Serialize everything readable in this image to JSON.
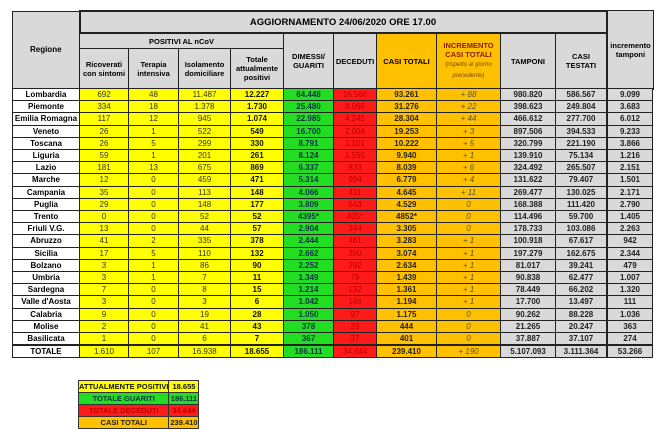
{
  "title": "AGGIORNAMENTO 24/06/2020 ORE 17.00",
  "headers": {
    "regione": "Regione",
    "positivi_group": "POSITIVI AL nCoV",
    "ricoverati": "Ricoverati con sintomi",
    "terapia": "Terapia intensiva",
    "isolamento": "Isolamento domiciliare",
    "totale_positivi": "Totale attualmente positivi",
    "dimessi": "DIMESSI/ GUARITI",
    "deceduti": "DECEDUTI",
    "casi_totali": "CASI TOTALI",
    "incremento": "INCREMENTO CASI TOTALI",
    "incremento_note": "(rispetto al giorno precedente)",
    "tamponi": "TAMPONI",
    "casi_testati": "CASI TESTATI",
    "incremento_tamponi": "incremento tamponi"
  },
  "colors": {
    "positivi": "#ffff00",
    "guariti": "#22dd22",
    "deceduti": "#ff1a1a",
    "casi_totali": "#ffc000",
    "header": "#d9d9d9"
  },
  "rows": [
    [
      "Lombardia",
      "692",
      "48",
      "11.487",
      "12.227",
      "64.448",
      "16.586",
      "93.261",
      "+ 88",
      "980.820",
      "586.567",
      "9.099"
    ],
    [
      "Piemonte",
      "334",
      "18",
      "1.378",
      "1.730",
      "25.480",
      "4.066",
      "31.276",
      "+ 22",
      "398.623",
      "249.804",
      "3.683"
    ],
    [
      "Emilia Romagna",
      "117",
      "12",
      "945",
      "1.074",
      "22.985",
      "4.245",
      "28.304",
      "+ 44",
      "466.612",
      "277.700",
      "6.012"
    ],
    [
      "Veneto",
      "26",
      "1",
      "522",
      "549",
      "16.700",
      "2.004",
      "19.253",
      "+ 3",
      "897.506",
      "394.533",
      "9.233"
    ],
    [
      "Toscana",
      "26",
      "5",
      "299",
      "330",
      "8.791",
      "1.101",
      "10.222",
      "+ 5",
      "320.799",
      "221.190",
      "3.866"
    ],
    [
      "Liguria",
      "59",
      "1",
      "201",
      "261",
      "8.124",
      "1.555",
      "9.940",
      "+ 1",
      "139.910",
      "75.134",
      "1.216"
    ],
    [
      "Lazio",
      "181",
      "13",
      "675",
      "869",
      "6.337",
      "833",
      "8.039",
      "+ 6",
      "324.492",
      "265.507",
      "2.151"
    ],
    [
      "Marche",
      "12",
      "0",
      "459",
      "471",
      "5.314",
      "994",
      "6.779",
      "+ 4",
      "131.622",
      "79.407",
      "1.501"
    ],
    [
      "Campania",
      "35",
      "0",
      "113",
      "148",
      "4.066",
      "431",
      "4.645",
      "+ 11",
      "269.477",
      "130.025",
      "2.171"
    ],
    [
      "Puglia",
      "29",
      "0",
      "148",
      "177",
      "3.809",
      "543",
      "4.529",
      "0",
      "168.388",
      "111.420",
      "2.790"
    ],
    [
      "Trento",
      "0",
      "0",
      "52",
      "52",
      "4395*",
      "405*",
      "4852*",
      "0",
      "114.496",
      "59.700",
      "1.405"
    ],
    [
      "Friuli V.G.",
      "13",
      "0",
      "44",
      "57",
      "2.904",
      "344",
      "3.305",
      "0",
      "178.733",
      "103.086",
      "2.263"
    ],
    [
      "Abruzzo",
      "41",
      "2",
      "335",
      "378",
      "2.444",
      "461",
      "3.283",
      "+ 1",
      "100.918",
      "67.617",
      "942"
    ],
    [
      "Sicilia",
      "17",
      "5",
      "110",
      "132",
      "2.662",
      "280",
      "3.074",
      "+ 1",
      "197.279",
      "162.675",
      "2.344"
    ],
    [
      "Bolzano",
      "3",
      "1",
      "86",
      "90",
      "2.252",
      "292",
      "2.634",
      "+ 1",
      "81.017",
      "39.241",
      "479"
    ],
    [
      "Umbria",
      "3",
      "1",
      "7",
      "11",
      "1.349",
      "79",
      "1.439",
      "+ 1",
      "90.838",
      "62.477",
      "1.007"
    ],
    [
      "Sardegna",
      "7",
      "0",
      "8",
      "15",
      "1.214",
      "132",
      "1.361",
      "+ 1",
      "78.449",
      "66.202",
      "1.320"
    ],
    [
      "Valle d'Aosta",
      "3",
      "0",
      "3",
      "6",
      "1.042",
      "146",
      "1.194",
      "+ 1",
      "17.700",
      "13.497",
      "111"
    ],
    [
      "Calabria",
      "9",
      "0",
      "19",
      "28",
      "1.050",
      "97",
      "1.175",
      "0",
      "90.262",
      "88.228",
      "1.036"
    ],
    [
      "Molise",
      "2",
      "0",
      "41",
      "43",
      "378",
      "23",
      "444",
      "0",
      "21.265",
      "20.247",
      "363"
    ],
    [
      "Basilicata",
      "1",
      "0",
      "6",
      "7",
      "367",
      "27",
      "401",
      "0",
      "37.887",
      "37.107",
      "274"
    ]
  ],
  "totals": [
    "TOTALE",
    "1.610",
    "107",
    "16.938",
    "18.655",
    "186.111",
    "34.644",
    "239.410",
    "+ 190",
    "5.107.093",
    "3.111.364",
    "53.266"
  ],
  "summary": [
    {
      "label": "ATTUALMENTE POSITIVI",
      "value": "18.655"
    },
    {
      "label": "TOTALE GUARITI",
      "value": "186.111"
    },
    {
      "label": "TOTALE DECEDUTI",
      "value": "34.644"
    },
    {
      "label": "CASI TOTALI",
      "value": "239.410"
    }
  ]
}
